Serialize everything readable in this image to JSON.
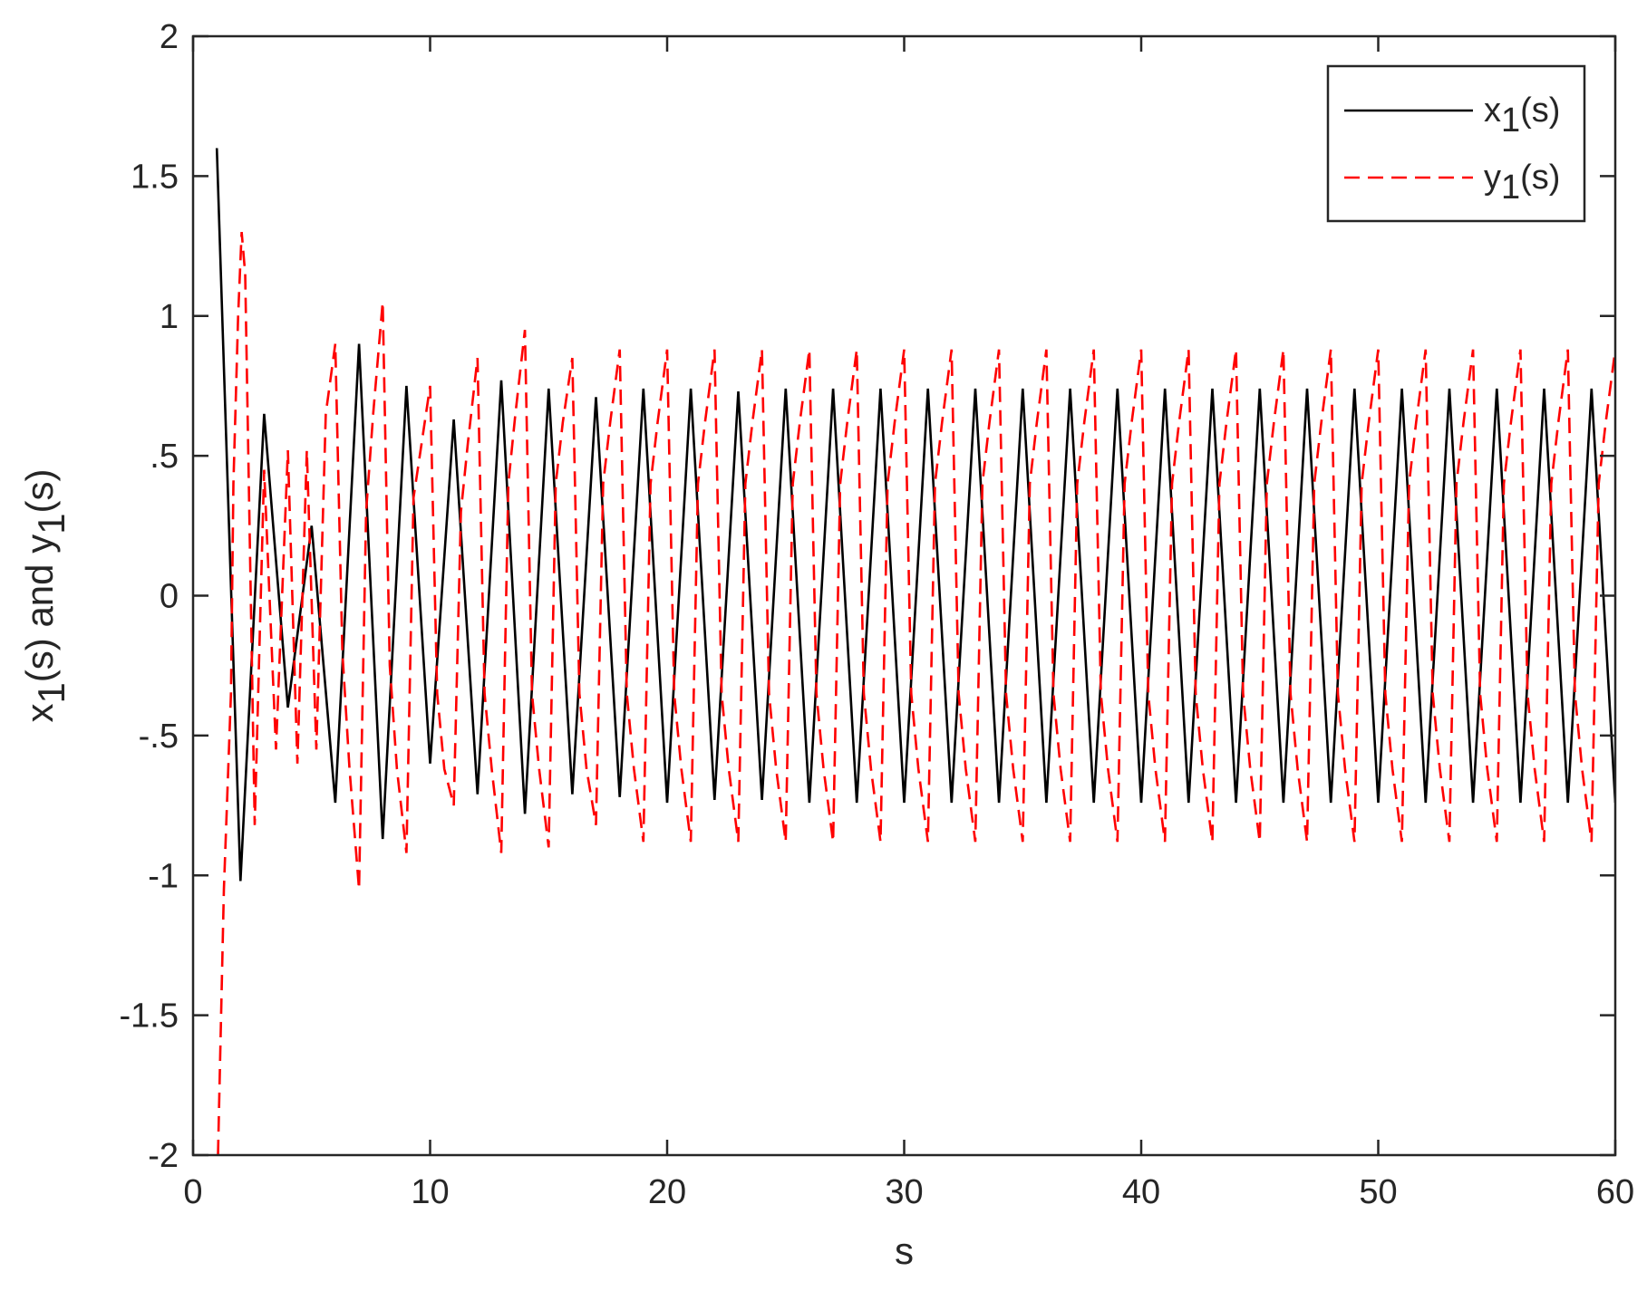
{
  "chart_data": {
    "type": "line",
    "xlabel": "s",
    "ylabel": {
      "parts": [
        {
          "t": "x",
          "sub": false
        },
        {
          "t": "1",
          "sub": true
        },
        {
          "t": "(s) and y",
          "sub": false
        },
        {
          "t": "1",
          "sub": true
        },
        {
          "t": "(s)",
          "sub": false
        }
      ]
    },
    "xlim": [
      0,
      60
    ],
    "ylim": [
      -2,
      2
    ],
    "xticks": [
      0,
      10,
      20,
      30,
      40,
      50,
      60
    ],
    "yticks": [
      -2,
      -1.5,
      -1,
      -0.5,
      0,
      0.5,
      1,
      1.5,
      2
    ],
    "grid": false,
    "box": true,
    "legend_position": "top-right",
    "series": [
      {
        "name": "x1(s)",
        "legend_parts": [
          {
            "t": "x",
            "sub": false
          },
          {
            "t": "1",
            "sub": true
          },
          {
            "t": "(s)",
            "sub": false
          }
        ],
        "color": "#000000",
        "line_style": "solid",
        "x": [
          1,
          2,
          3,
          4,
          5,
          6,
          7,
          8,
          9,
          10,
          11,
          12,
          13,
          14,
          15,
          16,
          17,
          18,
          19,
          20,
          21,
          22,
          23,
          24,
          25,
          26,
          27,
          28,
          29,
          30,
          31,
          32,
          33,
          34,
          35,
          36,
          37,
          38,
          39,
          40,
          41,
          42,
          43,
          44,
          45,
          46,
          47,
          48,
          49,
          50,
          51,
          52,
          53,
          54,
          55,
          56,
          57,
          58,
          59,
          60
        ],
        "y": [
          1.6,
          -1.02,
          0.65,
          -0.4,
          0.25,
          -0.74,
          0.9,
          -0.87,
          0.75,
          -0.6,
          0.63,
          -0.71,
          0.77,
          -0.78,
          0.74,
          -0.71,
          0.71,
          -0.72,
          0.74,
          -0.74,
          0.74,
          -0.73,
          0.73,
          -0.73,
          0.74,
          -0.74,
          0.74,
          -0.74,
          0.74,
          -0.74,
          0.74,
          -0.74,
          0.74,
          -0.74,
          0.74,
          -0.74,
          0.74,
          -0.74,
          0.74,
          -0.74,
          0.74,
          -0.74,
          0.74,
          -0.74,
          0.74,
          -0.74,
          0.74,
          -0.74,
          0.74,
          -0.74,
          0.74,
          -0.74,
          0.74,
          -0.74,
          0.74,
          -0.74,
          0.74,
          -0.74,
          0.74,
          -0.74
        ]
      },
      {
        "name": "y1(s)",
        "legend_parts": [
          {
            "t": "y",
            "sub": false
          },
          {
            "t": "1",
            "sub": true
          },
          {
            "t": "(s)",
            "sub": false
          }
        ],
        "color": "#ff0000",
        "line_style": "dashed",
        "x": [
          1.05,
          1.3,
          1.6,
          1.7,
          1.9,
          2.05,
          2.2,
          2.6,
          3,
          3.5,
          4,
          4.4,
          4.8,
          5.2,
          5.6,
          6,
          6.3,
          6.6,
          7,
          7.3,
          7.6,
          8,
          8.3,
          8.6,
          9,
          9.3,
          9.6,
          10,
          10.3,
          10.6,
          11,
          11.3,
          11.6,
          12,
          12.3,
          12.6,
          13,
          13.3,
          13.6,
          14,
          14.3,
          14.6,
          15,
          15.3,
          15.6,
          16,
          16.3,
          16.6,
          17,
          17.3,
          17.6,
          18,
          18.3,
          18.6,
          19,
          19.3,
          19.6,
          20,
          20.3,
          20.6,
          21,
          21.3,
          21.6,
          22,
          22.3,
          22.6,
          23,
          23.3,
          23.6,
          24,
          24.3,
          24.6,
          25,
          25.3,
          25.6,
          26,
          26.3,
          26.6,
          27,
          27.3,
          27.6,
          28,
          28.3,
          28.6,
          29,
          29.3,
          29.6,
          30,
          30.3,
          30.6,
          31,
          31.3,
          31.6,
          32,
          32.3,
          32.6,
          33,
          33.3,
          33.6,
          34,
          34.3,
          34.6,
          35,
          35.3,
          35.6,
          36,
          36.3,
          36.6,
          37,
          37.3,
          37.6,
          38,
          38.3,
          38.6,
          39,
          39.3,
          39.6,
          40,
          40.3,
          40.6,
          41,
          41.3,
          41.6,
          42,
          42.3,
          42.6,
          43,
          43.3,
          43.6,
          44,
          44.3,
          44.6,
          45,
          45.3,
          45.6,
          46,
          46.3,
          46.6,
          47,
          47.3,
          47.6,
          48,
          48.3,
          48.6,
          49,
          49.3,
          49.6,
          50,
          50.3,
          50.6,
          51,
          51.3,
          51.6,
          52,
          52.3,
          52.6,
          53,
          53.3,
          53.6,
          54,
          54.3,
          54.6,
          55,
          55.3,
          55.6,
          56,
          56.3,
          56.6,
          57,
          57.3,
          57.6,
          58,
          58.3,
          58.6,
          59,
          59.3,
          59.6,
          60
        ],
        "y": [
          -2,
          -1.05,
          -0.35,
          0.4,
          1.0,
          1.3,
          1.15,
          -0.82,
          0.45,
          -0.55,
          0.52,
          -0.6,
          0.52,
          -0.55,
          0.65,
          0.9,
          -0.2,
          -0.62,
          -1.05,
          0.3,
          0.65,
          1.05,
          -0.25,
          -0.62,
          -0.92,
          0.35,
          0.52,
          0.75,
          -0.35,
          -0.62,
          -0.75,
          0.3,
          0.55,
          0.85,
          -0.35,
          -0.62,
          -0.92,
          0.4,
          0.65,
          0.95,
          -0.35,
          -0.62,
          -0.9,
          0.4,
          0.62,
          0.85,
          -0.35,
          -0.62,
          -0.82,
          0.4,
          0.62,
          0.88,
          -0.35,
          -0.62,
          -0.88,
          0.4,
          0.62,
          0.88,
          -0.35,
          -0.62,
          -0.88,
          0.4,
          0.62,
          0.88,
          -0.35,
          -0.62,
          -0.88,
          0.4,
          0.62,
          0.88,
          -0.35,
          -0.62,
          -0.88,
          0.4,
          0.62,
          0.88,
          -0.35,
          -0.62,
          -0.88,
          0.4,
          0.62,
          0.88,
          -0.35,
          -0.62,
          -0.88,
          0.4,
          0.62,
          0.88,
          -0.35,
          -0.62,
          -0.88,
          0.4,
          0.62,
          0.88,
          -0.35,
          -0.62,
          -0.88,
          0.4,
          0.62,
          0.88,
          -0.35,
          -0.62,
          -0.88,
          0.4,
          0.62,
          0.88,
          -0.35,
          -0.62,
          -0.88,
          0.4,
          0.62,
          0.88,
          -0.35,
          -0.62,
          -0.88,
          0.4,
          0.62,
          0.88,
          -0.35,
          -0.62,
          -0.88,
          0.4,
          0.62,
          0.88,
          -0.35,
          -0.62,
          -0.88,
          0.4,
          0.62,
          0.88,
          -0.35,
          -0.62,
          -0.88,
          0.4,
          0.62,
          0.88,
          -0.35,
          -0.62,
          -0.88,
          0.4,
          0.62,
          0.88,
          -0.35,
          -0.62,
          -0.88,
          0.4,
          0.62,
          0.88,
          -0.35,
          -0.62,
          -0.88,
          0.4,
          0.62,
          0.88,
          -0.35,
          -0.62,
          -0.88,
          0.4,
          0.62,
          0.88,
          -0.35,
          -0.62,
          -0.88,
          0.4,
          0.62,
          0.88,
          -0.35,
          -0.62,
          -0.88,
          0.4,
          0.62,
          0.88,
          -0.35,
          -0.62,
          -0.88,
          0.4,
          0.62,
          0.88
        ]
      }
    ]
  }
}
